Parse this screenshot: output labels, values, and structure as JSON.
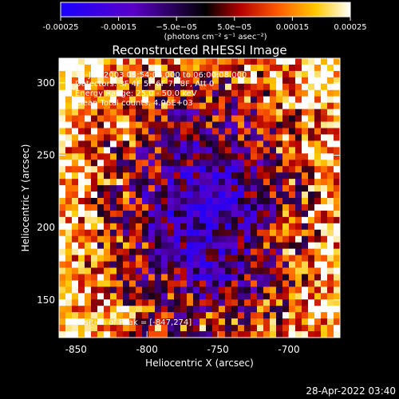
{
  "colorbar": {
    "ticks": [
      "-0.00025",
      "-0.00015",
      "−5.0e−05",
      "5.0e−05",
      "0.00015",
      "0.00025"
    ],
    "tick_values": [
      -0.00025,
      -0.00015,
      -5e-05,
      5e-05,
      0.00015,
      0.00025
    ],
    "range": [
      -0.00025,
      0.00025
    ],
    "unit_label": "(photons cm⁻² s⁻¹ asec⁻²)",
    "colors": [
      "#1a00ff",
      "#5a00c8",
      "#000000",
      "#b40000",
      "#ff5a00",
      "#ffc800",
      "#ffffff"
    ]
  },
  "chart_data": {
    "type": "heatmap",
    "title": "Reconstructed RHESSI Image",
    "xlabel": "Heliocentric X (arcsec)",
    "ylabel": "Heliocentric Y (arcsec)",
    "xlim": [
      -862,
      -664
    ],
    "ylim": [
      124,
      317
    ],
    "x_ticks": [
      -850,
      -800,
      -750,
      -700
    ],
    "y_ticks": [
      150,
      200,
      250,
      300
    ],
    "annotations": [
      "16-Jan-2003 05:54:08.000 to 06:00:08.000",
      "Detectors: 3F 4F 5F 6F 7F 8F, Att 0",
      "Energy Range: 25.0 - 50.0 keV",
      "Clean    Total counts: 4.96E+03",
      "Position of Peak = [-847,274]"
    ],
    "peak": {
      "x": -847,
      "y": 274
    },
    "grid": false
  },
  "timestamp": "28-Apr-2022 03:40"
}
